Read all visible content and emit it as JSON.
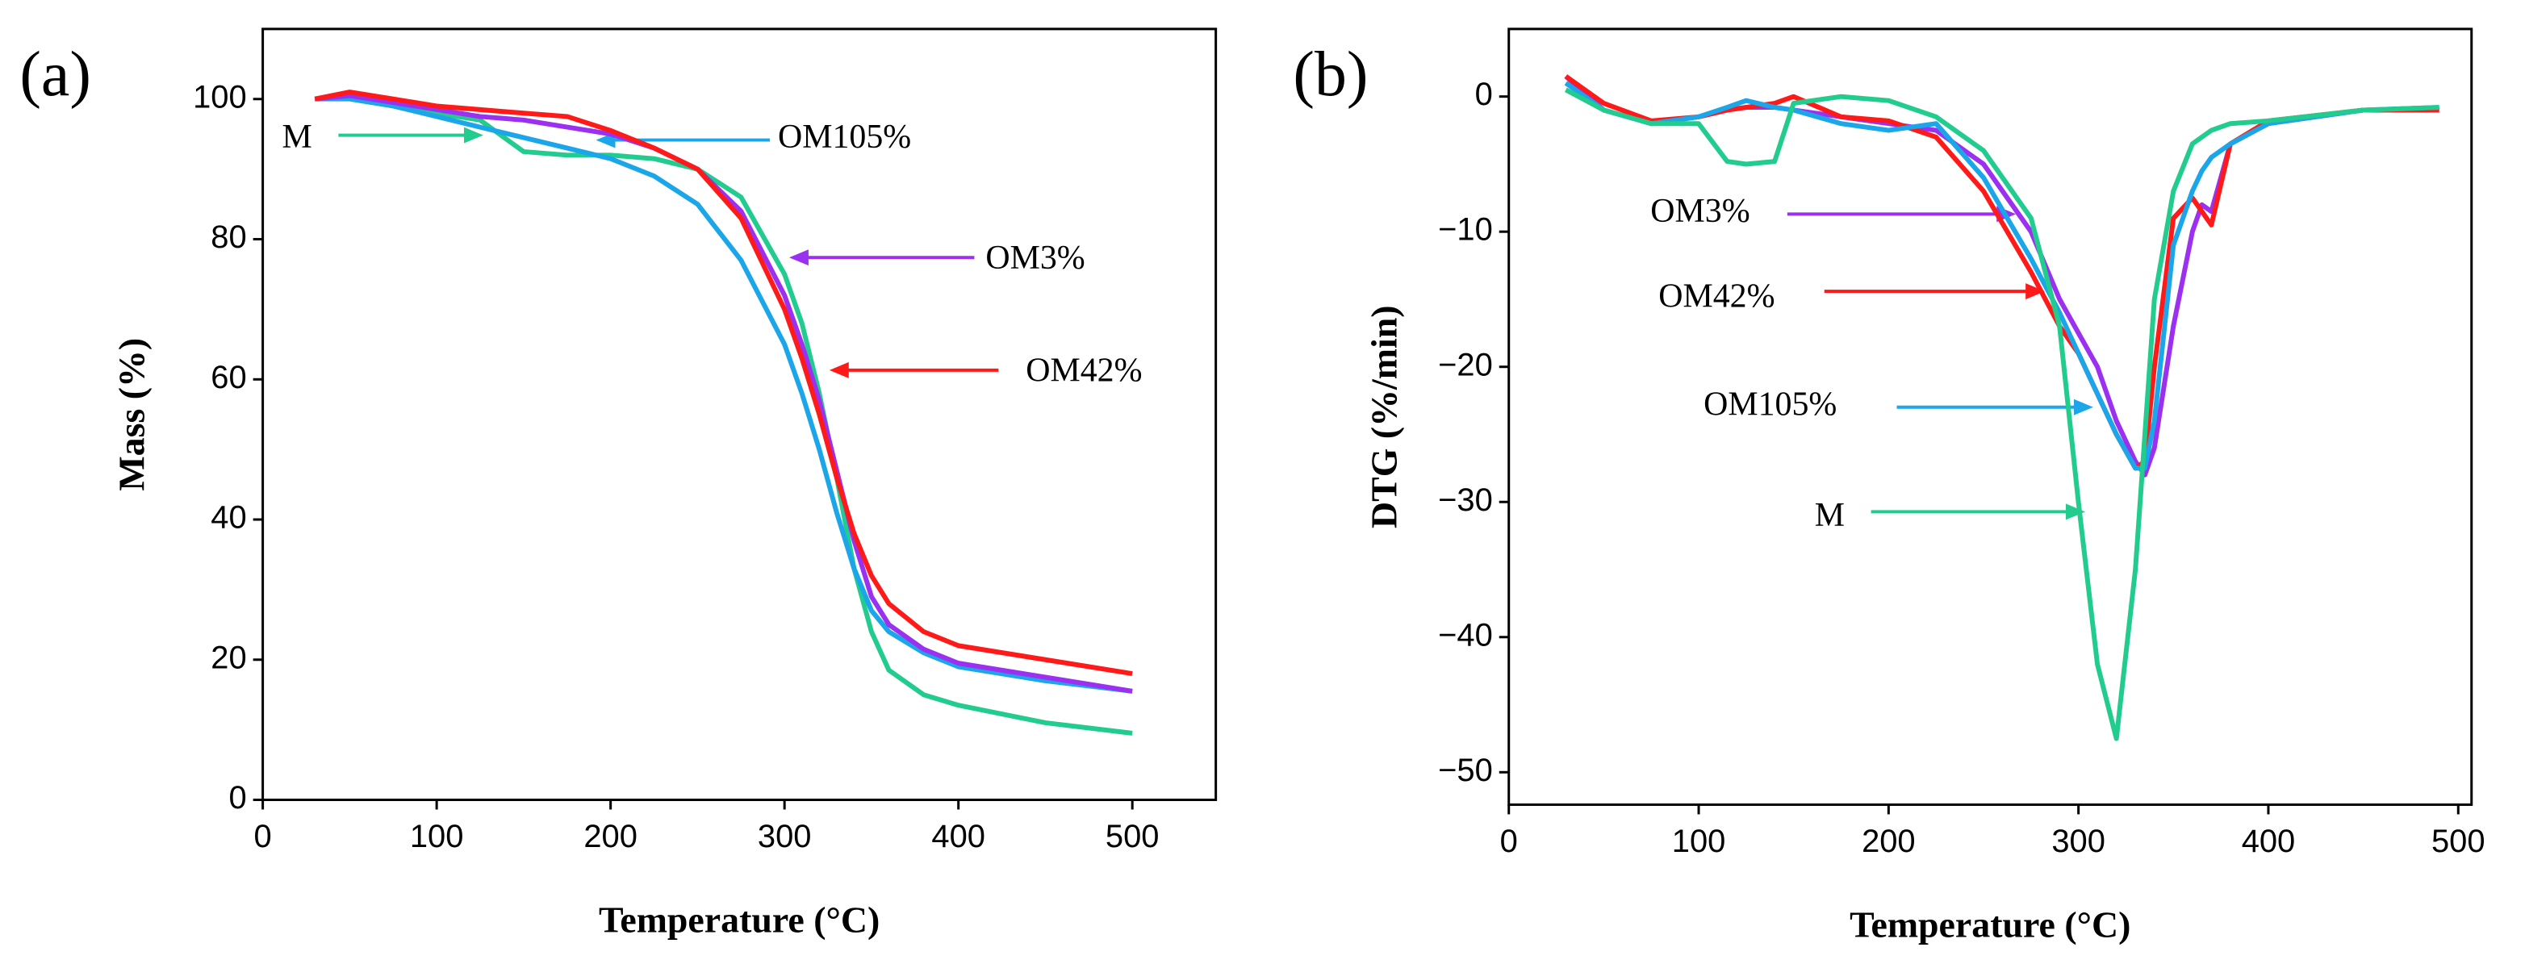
{
  "chart_data": [
    {
      "type": "line",
      "panel_label": "(a)",
      "xlabel": "Temperature (°C)",
      "ylabel": "Mass (%)",
      "xlim": [
        0,
        548
      ],
      "ylim": [
        0,
        110
      ],
      "xticks": [
        0,
        100,
        200,
        300,
        400,
        500
      ],
      "yticks": [
        0,
        20,
        40,
        60,
        80,
        100
      ],
      "x": [
        30,
        50,
        75,
        100,
        125,
        150,
        175,
        200,
        225,
        250,
        275,
        300,
        310,
        320,
        330,
        340,
        350,
        360,
        380,
        400,
        450,
        500
      ],
      "series": [
        {
          "name": "M",
          "color": "#22cc8e",
          "values": [
            100,
            100.5,
            99.5,
            98,
            97,
            92.5,
            92,
            92,
            91.5,
            90,
            86,
            75,
            68,
            58,
            46,
            33,
            24,
            18.5,
            15,
            13.5,
            11,
            9.5
          ]
        },
        {
          "name": "OM105%",
          "color": "#1ba6ea",
          "values": [
            100,
            100,
            99,
            97.5,
            96,
            94.5,
            93,
            91.5,
            89,
            85,
            77,
            65,
            58,
            50,
            41,
            33,
            27,
            24,
            21,
            19,
            17,
            15.5
          ]
        },
        {
          "name": "OM3%",
          "color": "#9b30f0",
          "values": [
            100,
            100.5,
            99.5,
            98.5,
            97.5,
            97,
            96,
            95,
            93,
            90,
            84,
            72,
            65,
            57,
            47,
            37,
            29,
            25,
            21.5,
            19.5,
            17.5,
            15.5
          ]
        },
        {
          "name": "OM42%",
          "color": "#ff1a1a",
          "values": [
            100,
            101,
            100,
            99,
            98.5,
            98,
            97.5,
            95.5,
            93,
            90,
            83,
            70,
            63,
            55,
            46,
            38,
            32,
            28,
            24,
            22,
            20,
            18
          ]
        }
      ]
    },
    {
      "type": "line",
      "panel_label": "(b)",
      "xlabel": "Temperature (°C)",
      "ylabel": "DTG (%/min)",
      "xlim": [
        0,
        507
      ],
      "ylim": [
        -52.4,
        5
      ],
      "xticks": [
        0,
        100,
        200,
        300,
        400,
        500
      ],
      "yticks": [
        {
          "value": -50,
          "label": "−50"
        },
        {
          "value": -40,
          "label": "−40"
        },
        {
          "value": -30,
          "label": "−30"
        },
        {
          "value": -20,
          "label": "−20"
        },
        {
          "value": -10,
          "label": "−10"
        },
        0
      ],
      "x": [
        30,
        50,
        75,
        100,
        115,
        125,
        140,
        150,
        175,
        200,
        225,
        250,
        275,
        290,
        300,
        310,
        320,
        330,
        335,
        340,
        350,
        360,
        365,
        370,
        380,
        400,
        450,
        490
      ],
      "series": [
        {
          "name": "OM3%",
          "color": "#9b30f0",
          "values": [
            1.5,
            -1,
            -2,
            -1.5,
            -1,
            -0.8,
            -0.8,
            -1,
            -1.5,
            -2,
            -2.5,
            -5,
            -10,
            -15,
            -17.5,
            -20,
            -24,
            -27,
            -28,
            -26,
            -17,
            -10,
            -8,
            -8.5,
            -3.5,
            -2,
            -1,
            -1
          ]
        },
        {
          "name": "OM42%",
          "color": "#ff1a1a",
          "values": [
            1.5,
            -0.5,
            -1.8,
            -1.5,
            -1,
            -0.8,
            -0.5,
            0,
            -1.5,
            -1.8,
            -3,
            -7,
            -13,
            -17,
            -19,
            -22,
            -25,
            -27.5,
            -27,
            -20,
            -9,
            -7.5,
            -8.5,
            -9.5,
            -3.5,
            -1.8,
            -1,
            -1
          ]
        },
        {
          "name": "OM105%",
          "color": "#1ba6ea",
          "values": [
            1,
            -1,
            -2,
            -1.5,
            -0.8,
            -0.3,
            -0.8,
            -1,
            -2,
            -2.5,
            -2,
            -6,
            -12,
            -16,
            -19,
            -22,
            -25,
            -27.5,
            -27.5,
            -24,
            -11,
            -7,
            -5.5,
            -4.5,
            -3.5,
            -2,
            -1,
            -0.8
          ]
        },
        {
          "name": "M",
          "color": "#22cc8e",
          "values": [
            0.5,
            -1,
            -2,
            -2,
            -4.8,
            -5,
            -4.8,
            -0.5,
            0,
            -0.3,
            -1.5,
            -4,
            -9,
            -17,
            -30,
            -42,
            -47.5,
            -35,
            -25,
            -15,
            -7,
            -3.5,
            -3,
            -2.5,
            -2,
            -1.8,
            -1,
            -0.8
          ]
        }
      ]
    }
  ]
}
